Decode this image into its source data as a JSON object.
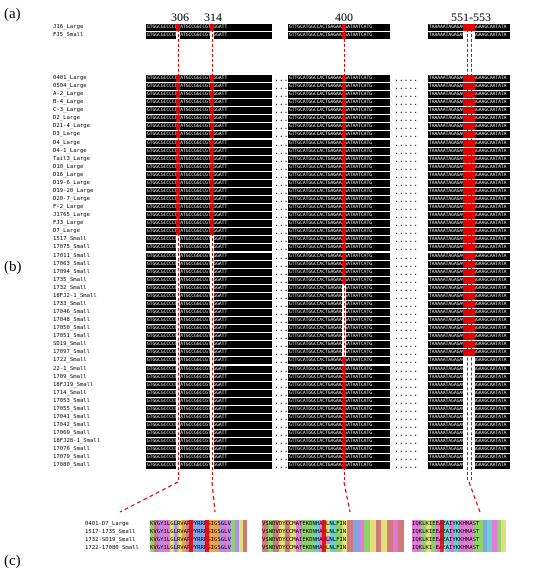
{
  "panel_labels": {
    "a": "(a)",
    "b": "(b)",
    "c": "(c)"
  },
  "positions": [
    {
      "label": "306"
    },
    {
      "label": "314"
    },
    {
      "label": "400"
    },
    {
      "label": "551-553"
    }
  ],
  "panel_a": {
    "rows": [
      "J16_Large",
      "FJ5_Small"
    ],
    "blocks": [
      "GTGGCGCCCCGTATGCCGGCCGTGGGATT",
      "GTTGCATGGCCACTGAGAAAGATAATCATG",
      "TAAAAATAGAGAGAGCAGAAGCAATATA"
    ]
  },
  "panel_b": {
    "rows": [
      "0401_Large",
      "0504_Large",
      "A-2_Large",
      "B-4_Large",
      "C-3_Large",
      "D2_Large",
      "D21-4_Large",
      "D3_Large",
      "D4_Large",
      "D4-1_Large",
      "Tail3_Large",
      "D10_Large",
      "D16_Large",
      "D19-6_Large",
      "D19-20_Large",
      "D20-7_Large",
      "F-2_Large",
      "J1765_Large",
      "FJ3_Large",
      "D7_Large",
      "1517_Small",
      "17075_Small",
      "17011_Small",
      "17063_Small",
      "17094_Small",
      "1735_Small",
      "1732_Small",
      "18FJ2-1_Small",
      "1733_Small",
      "17046_Small",
      "17048_Small",
      "17050_Small",
      "17051_Small",
      "SD19_Small",
      "17097_Small",
      "1722_Small",
      "22-1_Small",
      "1709_Small",
      "18FJ19_Small",
      "1714_Small",
      "17053_Small",
      "17055_Small",
      "17041_Small",
      "17042_Small",
      "17069_Small",
      "18FJ28-1_Small",
      "17076_Small",
      "17079_Small",
      "17080_Small"
    ],
    "blocks": [
      "GTGGCGCCCCGTATGCCGGCCGTGGGATT",
      "GTTGCATGGCCACTGAGAAAGATAATCATG",
      "TAAAAATAGAGAGAGCAGAAGCAATATA"
    ],
    "gap": "....."
  },
  "panel_c": {
    "rows": [
      {
        "name": "0401-D7_Large",
        "seq1": "KVGYILGLRVAPPYRRRGIGSGLV",
        "seq2": "VSNDVDYCCMATEKDNHASLNLFIN",
        "seq3": "IQKLKIEEAEAIYKKHMAST"
      },
      {
        "name": "1517-1735_Small",
        "seq1": "KVGYILGLRVAPPYRRRGIGSGLV",
        "seq2": "VSNDVDYCCMATEKDNHASLNLFIN",
        "seq3": "IQKLKIEEAEAIYKKHMAST"
      },
      {
        "name": "1732-SD19_Small",
        "seq1": "KVGYILGLRVAPPYRRRGIGSGLV",
        "seq2": "VSNDVDYCCMAIEKDNHASLNLFIN",
        "seq3": "IQKLKIEEAEAIYKKHMAST"
      },
      {
        "name": "1722-17080_Small",
        "seq1": "KVGYILGLRVAPPYRRRGIGSGLV",
        "seq2": "VSNDVDYCCMATEKDNHASLNLFIN",
        "seq3": "IQKLKI-EAEAIYKKHMAST"
      }
    ]
  },
  "colors": {
    "black": "#000000",
    "red": "#e00000",
    "white": "#ffffff"
  }
}
